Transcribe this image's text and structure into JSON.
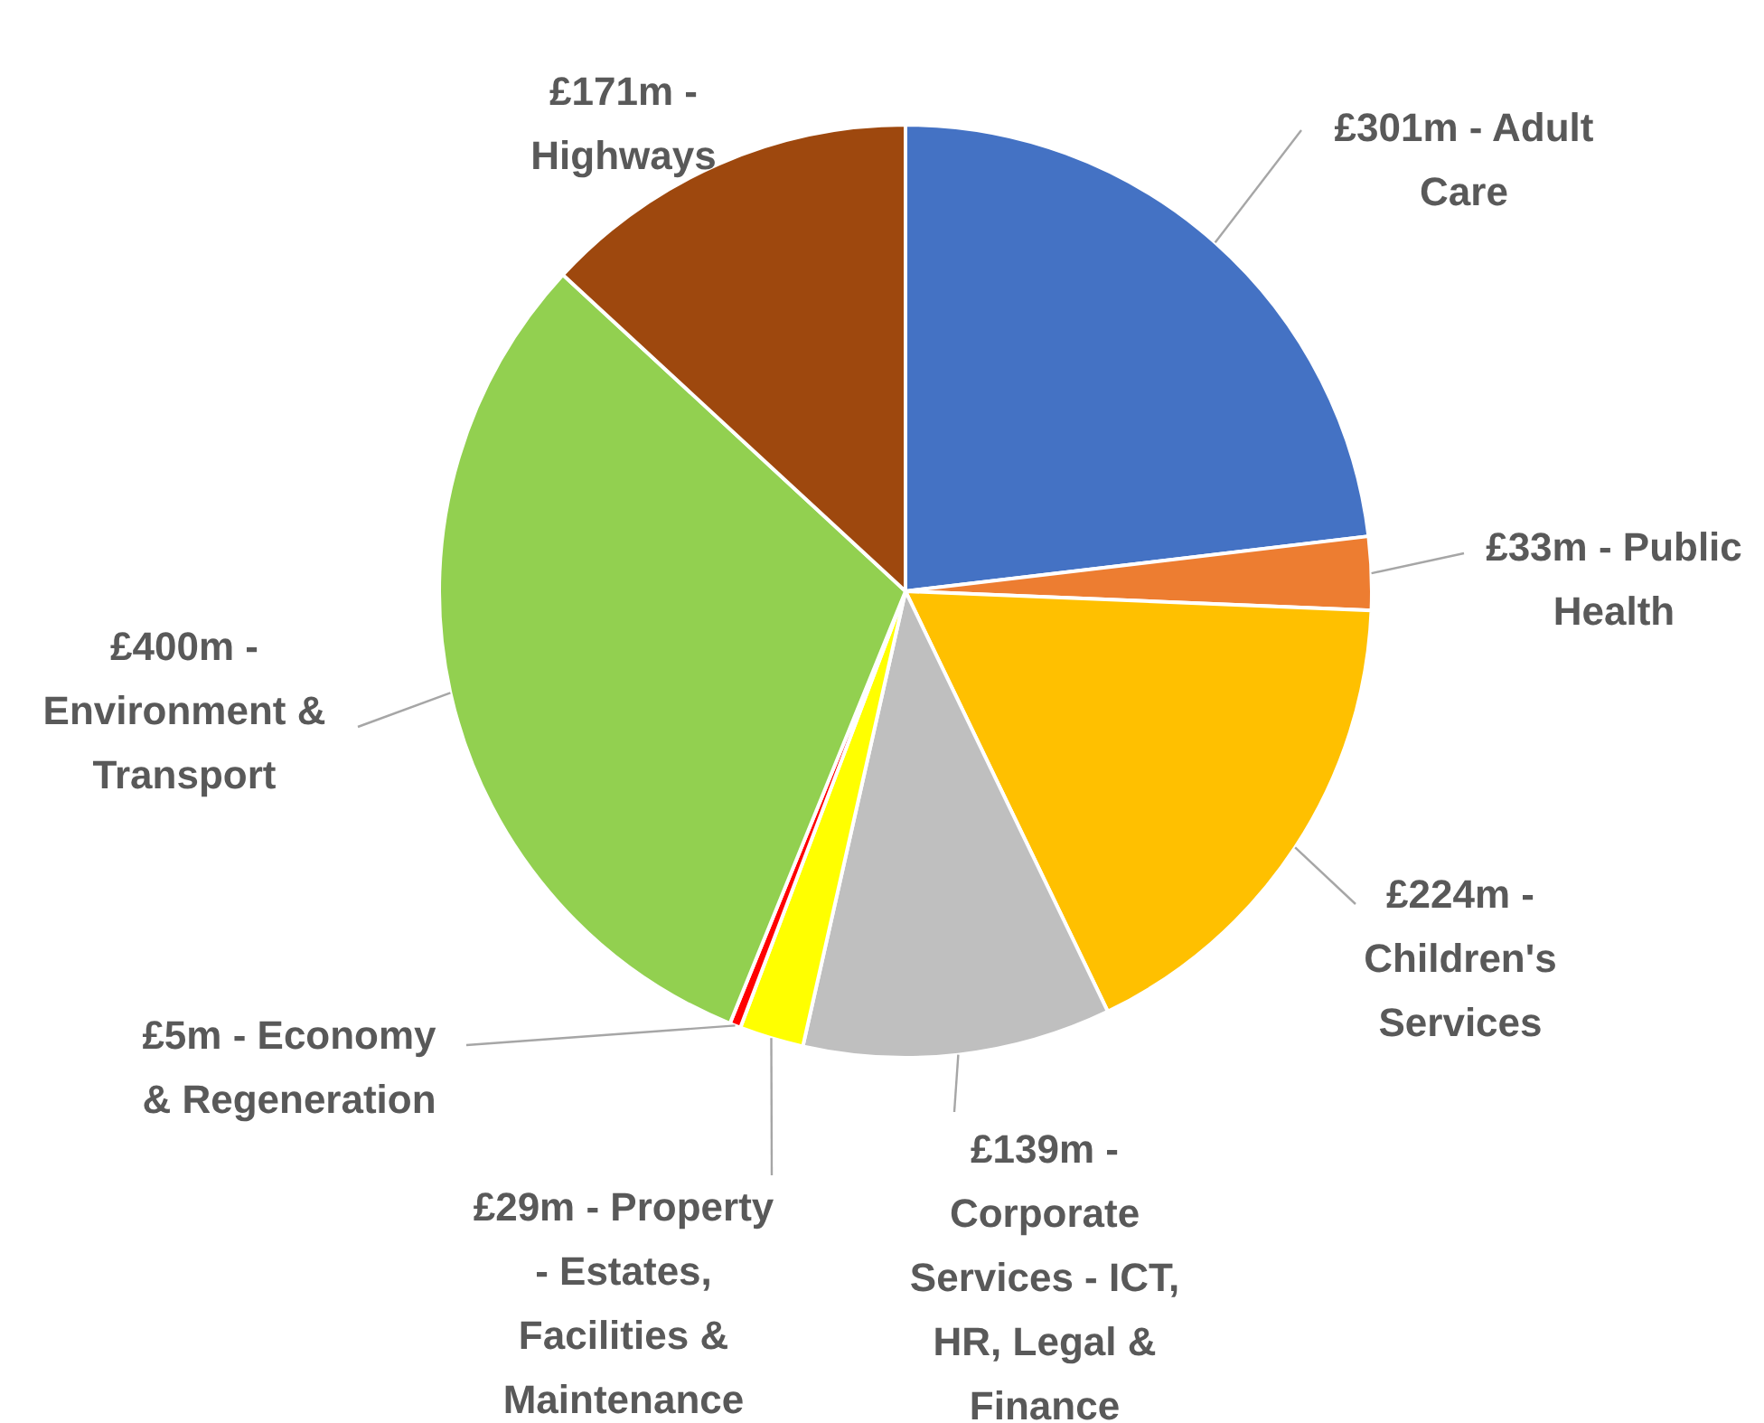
{
  "chart_data": {
    "type": "pie",
    "categories": [
      "£301m - Adult Care",
      "£33m - Public Health",
      "£224m - Children's Services",
      "£139m - Corporate Services - ICT, HR, Legal & Finance",
      "£29m - Property - Estates, Facilities & Maintenance",
      "£5m - Economy & Regeneration",
      "£400m - Environment & Transport",
      "£171m - Highways"
    ],
    "values": [
      301,
      33,
      224,
      139,
      29,
      5,
      400,
      171
    ],
    "colors": [
      "#4472c4",
      "#ed7d31",
      "#ffc000",
      "#bfbfbf",
      "#ffff00",
      "#ff0000",
      "#92d050",
      "#9e480e"
    ]
  }
}
